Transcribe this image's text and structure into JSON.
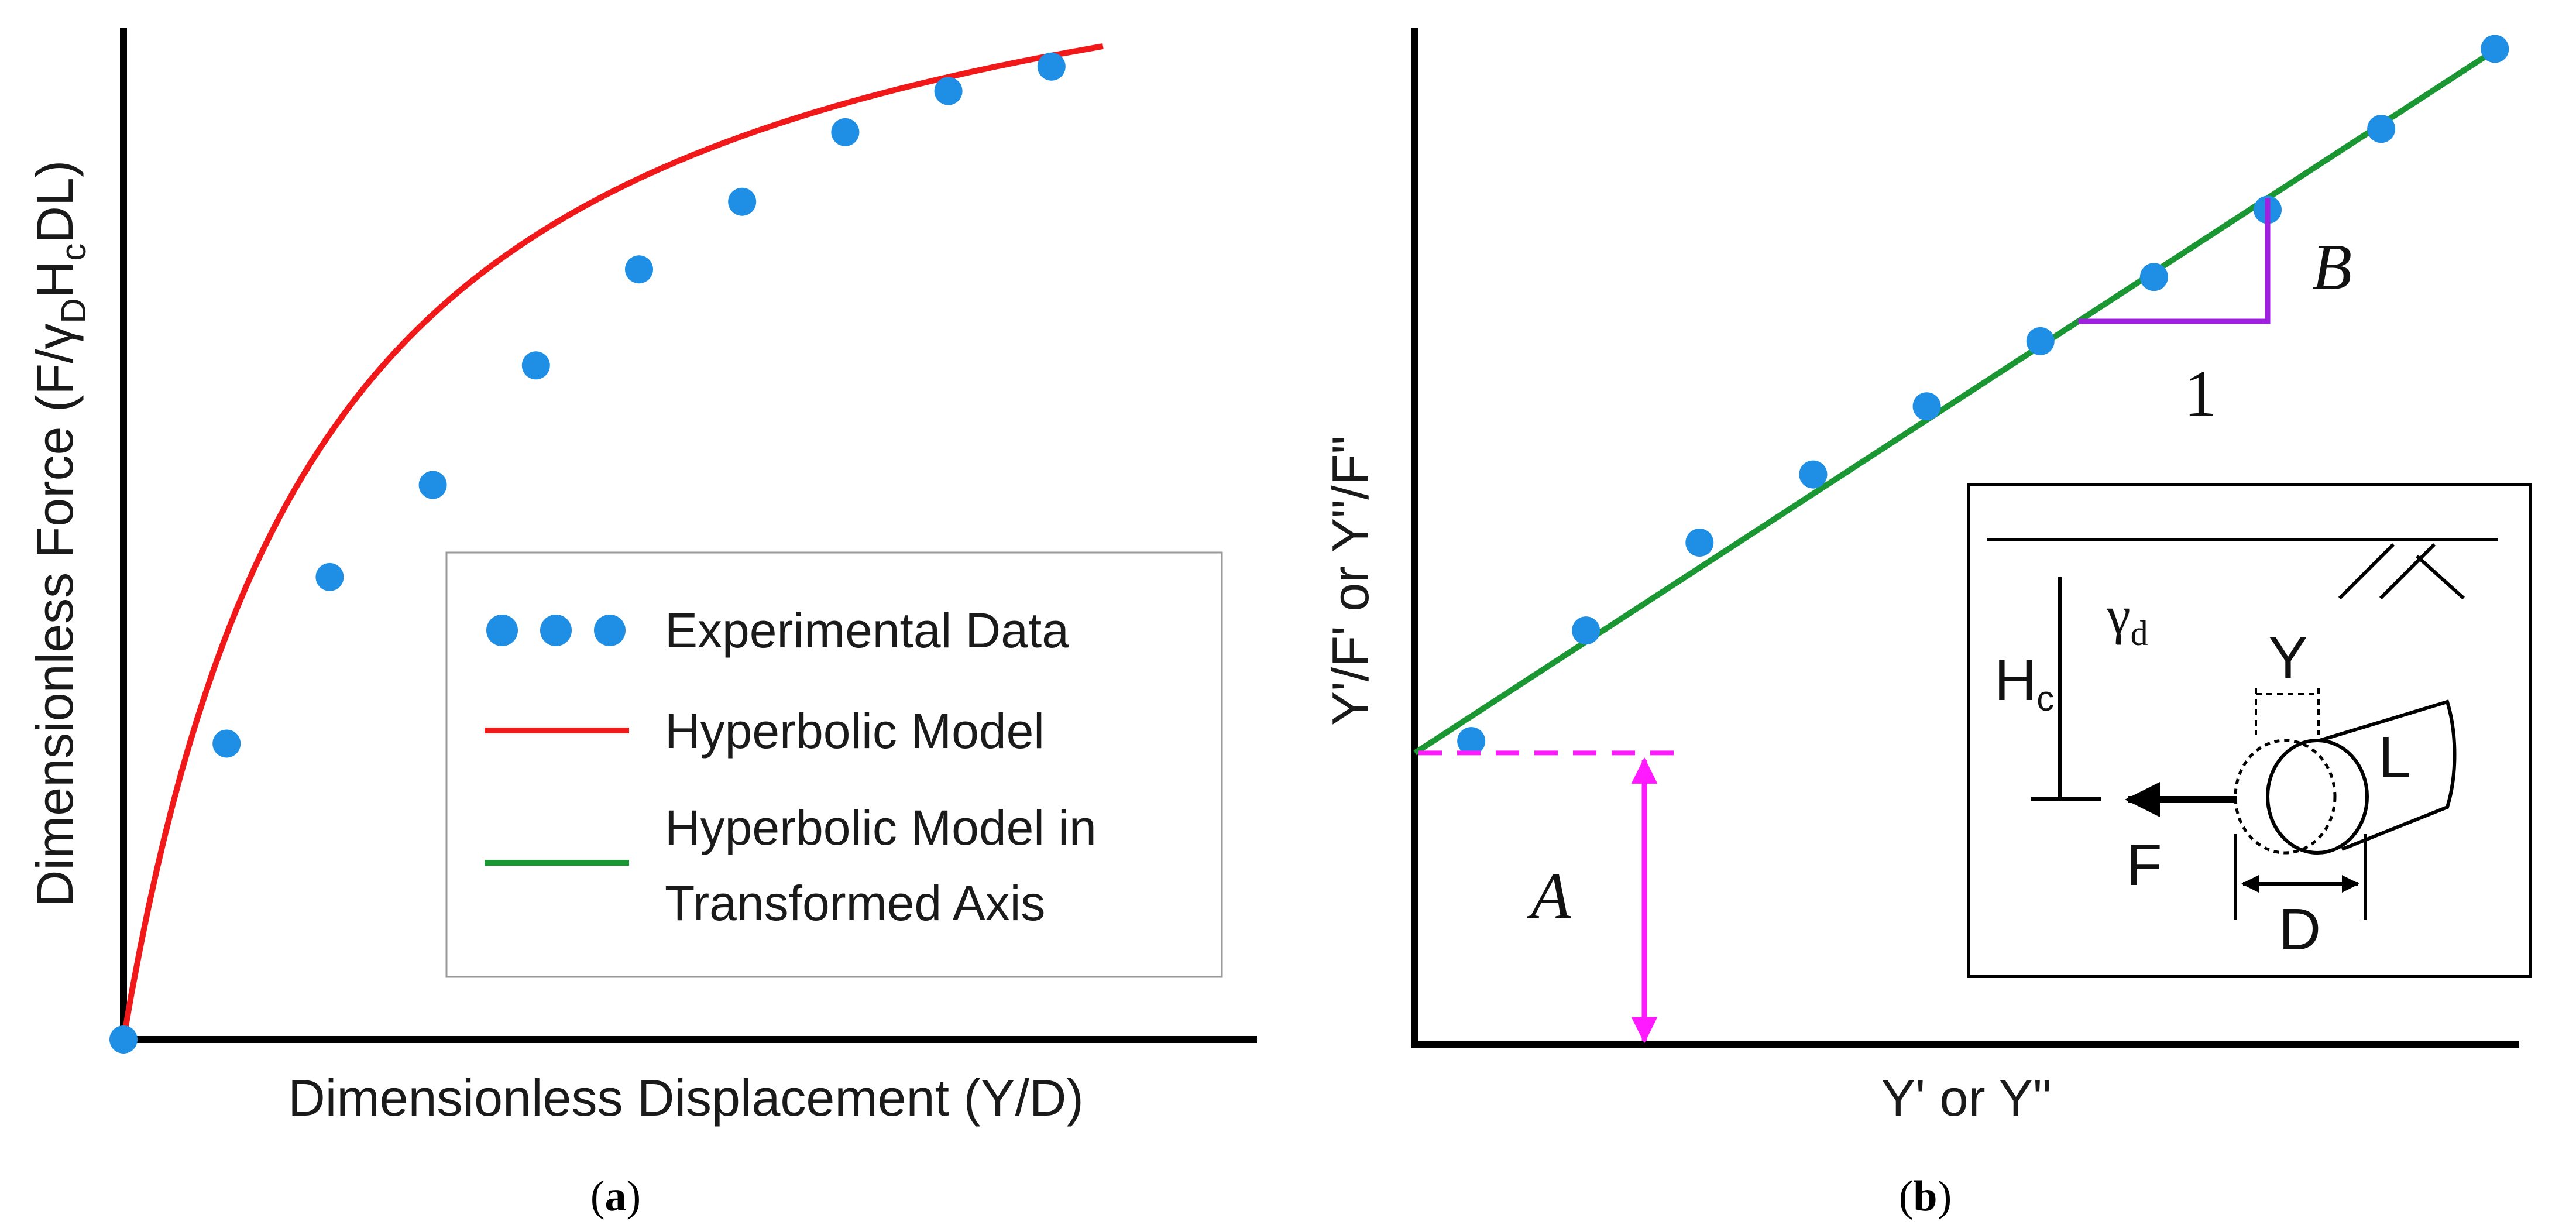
{
  "panel_labels": {
    "a": "(a)",
    "b": "(b)"
  },
  "colors": {
    "data_points": "#1f8fe6",
    "hyperbolic": "#f01818",
    "transformed": "#1a9632",
    "intercept_marker": "#ff1aff",
    "slope_marker": "#a020e0",
    "axis": "#000000",
    "legend_border": "#9a9a9a"
  },
  "legend": {
    "experimental": "Experimental Data",
    "hyperbolic": "Hyperbolic Model",
    "transformed_line1": "Hyperbolic Model in",
    "transformed_line2": "Transformed Axis"
  },
  "annotations": {
    "intercept": "A",
    "slope_rise": "B",
    "slope_run": "1"
  },
  "inset": {
    "gamma": "γ",
    "gamma_sub": "d",
    "hc": "H",
    "hc_sub": "c",
    "y": "Y",
    "l": "L",
    "f": "F",
    "d": "D"
  },
  "chart_data": [
    {
      "panel": "a",
      "type": "line",
      "title": "",
      "xlabel": "Dimensionless Displacement (Y/D)",
      "ylabel_parts": [
        "Dimensionless Force (F/",
        "γ",
        "D",
        "H",
        "c",
        "DL)"
      ],
      "xlim": [
        0,
        10
      ],
      "ylim": [
        0,
        10
      ],
      "grid": false,
      "ticks_shown": false,
      "legend_position": "bottom-right",
      "series": [
        {
          "name": "Experimental Data",
          "kind": "scatter",
          "x": [
            0,
            1,
            2,
            3,
            4,
            5,
            6,
            7,
            8,
            9
          ],
          "y": [
            0,
            3.02,
            4.72,
            5.66,
            6.88,
            7.86,
            8.55,
            9.26,
            9.68,
            9.93
          ]
        },
        {
          "name": "Hyperbolic Model",
          "kind": "line",
          "model": "y = x / (a + b x)",
          "a": 0.16,
          "b": 0.0818,
          "x_range": [
            0,
            9.5
          ]
        }
      ]
    },
    {
      "panel": "b",
      "type": "line",
      "title": "",
      "xlabel": "Y' or Y\"",
      "ylabel": "Y'/F' or Y\"/F\"",
      "xlim": [
        0,
        10
      ],
      "ylim": [
        0,
        10
      ],
      "grid": false,
      "ticks_shown": false,
      "series": [
        {
          "name": "Experimental Data",
          "kind": "scatter",
          "x": [
            0.52,
            1.58,
            2.63,
            3.68,
            4.73,
            5.78,
            6.83,
            7.88,
            8.93,
            9.98
          ],
          "y": [
            3.07,
            4.19,
            5.08,
            5.77,
            6.46,
            7.12,
            7.77,
            8.45,
            9.27,
            10.08
          ]
        },
        {
          "name": "Hyperbolic Model in Transformed Axis",
          "kind": "line",
          "x": [
            0,
            10
          ],
          "y": [
            2.95,
            10.08
          ]
        }
      ],
      "intercept_A": 2.95,
      "slope_B": 0.713,
      "slope_triangle_x": [
        6.13,
        7.88
      ]
    }
  ]
}
